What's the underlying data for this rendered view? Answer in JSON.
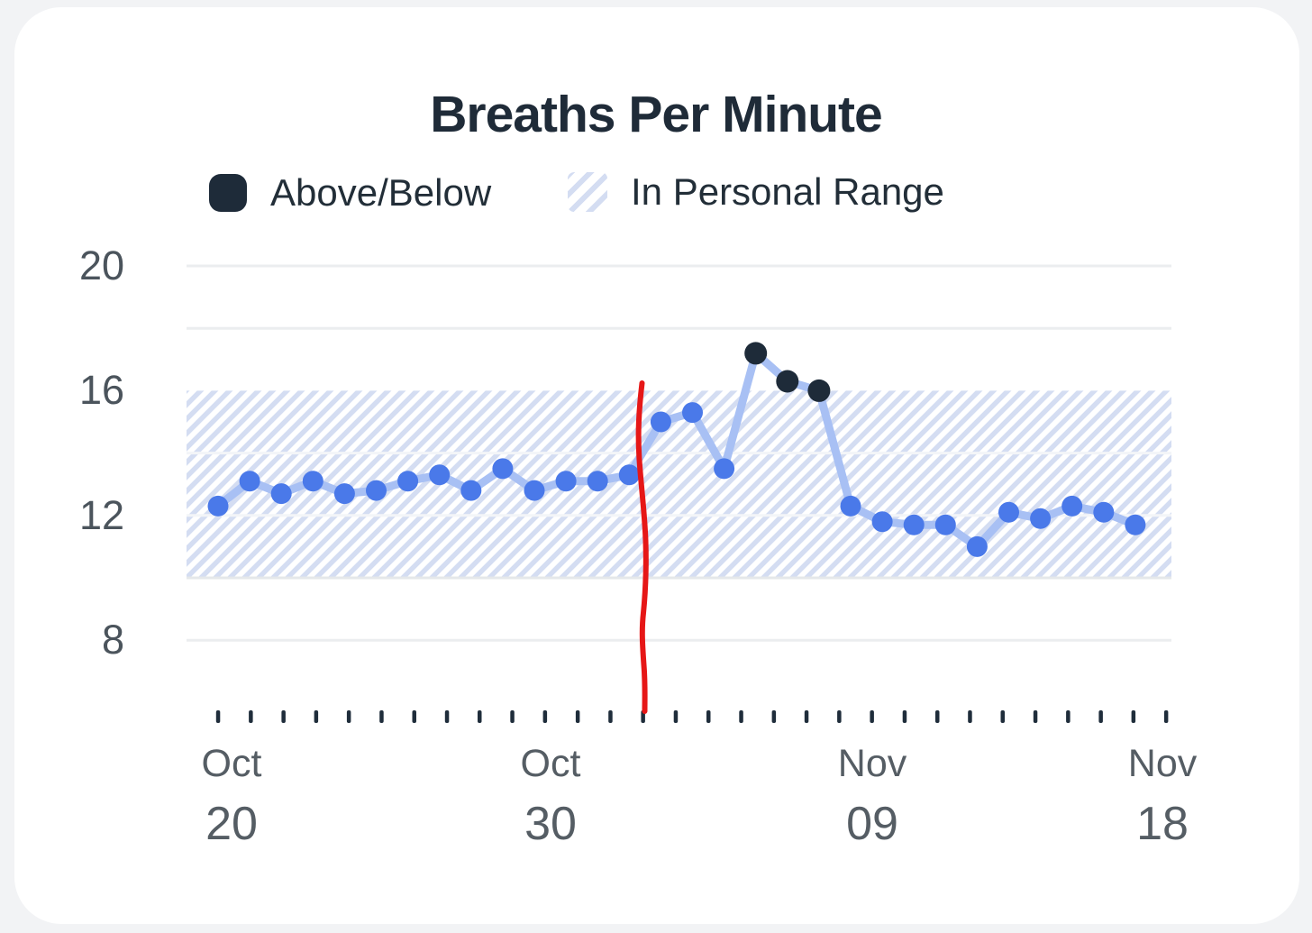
{
  "title": "Breaths Per Minute",
  "legend": {
    "above_below": {
      "label": "Above/Below",
      "swatch_color": "#1e2b39"
    },
    "in_personal_range": {
      "label": "In Personal Range",
      "stripe_color": "#d4ddf2"
    }
  },
  "chart_data": {
    "type": "line",
    "title": "Breaths Per Minute",
    "unit": "breaths per minute",
    "x": [
      "Oct 20",
      "Oct 21",
      "Oct 22",
      "Oct 23",
      "Oct 24",
      "Oct 25",
      "Oct 26",
      "Oct 27",
      "Oct 28",
      "Oct 29",
      "Oct 30",
      "Oct 31",
      "Nov 01",
      "Nov 02",
      "Nov 03",
      "Nov 04",
      "Nov 05",
      "Nov 06",
      "Nov 07",
      "Nov 08",
      "Nov 09",
      "Nov 10",
      "Nov 11",
      "Nov 12",
      "Nov 13",
      "Nov 14",
      "Nov 15",
      "Nov 16",
      "Nov 17",
      "Nov 18"
    ],
    "values": [
      12.3,
      13.1,
      12.7,
      13.1,
      12.7,
      12.8,
      13.1,
      13.3,
      12.8,
      13.5,
      12.8,
      13.1,
      13.1,
      13.3,
      15.0,
      15.3,
      13.5,
      17.2,
      16.3,
      16.0,
      12.3,
      11.8,
      11.7,
      11.7,
      11.0,
      12.1,
      11.9,
      12.3,
      12.1,
      11.7
    ],
    "above_indices": [
      17,
      18,
      19
    ],
    "personal_range": {
      "low": 10,
      "high": 16
    },
    "ylim": [
      6.5,
      21
    ],
    "y_axis_ticks": [
      20,
      16,
      12,
      8
    ],
    "gray_gridlines": [
      20,
      18,
      8
    ],
    "in_band_gridlines": [
      14,
      12
    ],
    "band_bottom_gridline": 10,
    "x_labeled_indices": [
      0,
      10,
      20,
      29
    ],
    "x_labels": [
      {
        "month": "Oct",
        "day": "20"
      },
      {
        "month": "Oct",
        "day": "30"
      },
      {
        "month": "Nov",
        "day": "09"
      },
      {
        "month": "Nov",
        "day": "18"
      }
    ],
    "annotation": {
      "kind": "hand-drawn-red-line",
      "color": "#e61717",
      "after_index": 13,
      "description": "vertical wavy red marker drawn between Nov 02 and Nov 03"
    },
    "legend_position": "top-left",
    "grid": "horizontal-only",
    "colors": {
      "point": "#4a79e9",
      "point_above": "#1e2b39",
      "line": "#a8c0f4",
      "band_stripe": "#d4ddf2",
      "grid": "#ebedef",
      "grid_in_band": "#f3f5f8",
      "grid_band_bottom": "#e5e8ea",
      "tick": "#1f2d3b",
      "x_axis_text": "#555d64",
      "y_axis_text": "#4b545c",
      "title_text": "#1f2b38",
      "legend_text": "#222e38",
      "annotation_red": "#e61717",
      "card_background": "#ffffff",
      "page_background": "#f2f3f5"
    }
  }
}
